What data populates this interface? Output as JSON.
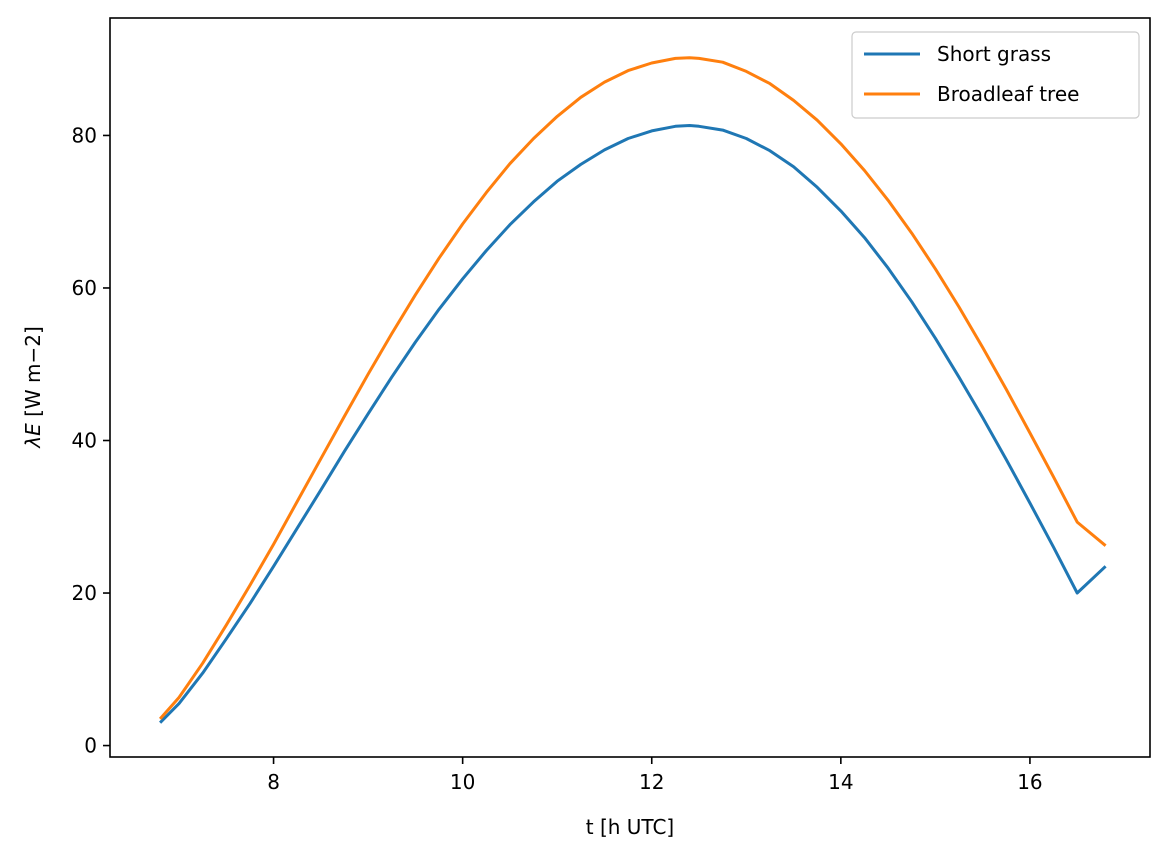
{
  "chart_data": {
    "type": "line",
    "title": "",
    "xlabel": "t [h UTC]",
    "ylabel_symbol": "λE",
    "ylabel_units": " [W m−2]",
    "xlim": [
      6.27,
      17.27
    ],
    "ylim": [
      -1.5,
      95.4
    ],
    "xticks": [
      8,
      10,
      12,
      14,
      16
    ],
    "yticks": [
      0,
      20,
      40,
      60,
      80
    ],
    "grid": false,
    "legend_position": "top-right",
    "series": [
      {
        "name": "Short grass",
        "color": "#1f77b4",
        "x": [
          6.8,
          7.0,
          7.25,
          7.5,
          7.75,
          8.0,
          8.25,
          8.5,
          8.75,
          9.0,
          9.25,
          9.5,
          9.75,
          10.0,
          10.25,
          10.5,
          10.75,
          11.0,
          11.25,
          11.5,
          11.75,
          12.0,
          12.25,
          12.4,
          12.5,
          12.75,
          13.0,
          13.25,
          13.5,
          13.75,
          14.0,
          14.25,
          14.5,
          14.75,
          15.0,
          15.25,
          15.5,
          15.75,
          16.0,
          16.25,
          16.5,
          16.8
        ],
        "y": [
          3.0,
          5.5,
          9.5,
          14.0,
          18.6,
          23.5,
          28.5,
          33.5,
          38.6,
          43.5,
          48.3,
          52.9,
          57.2,
          61.2,
          64.9,
          68.3,
          71.3,
          74.0,
          76.2,
          78.1,
          79.6,
          80.6,
          81.2,
          81.3,
          81.2,
          80.7,
          79.6,
          78.0,
          75.9,
          73.2,
          70.1,
          66.6,
          62.6,
          58.2,
          53.4,
          48.3,
          43.0,
          37.5,
          31.8,
          26.0,
          20.0,
          23.5
        ]
      },
      {
        "name": "Broadleaf tree",
        "color": "#ff7f0e",
        "x": [
          6.8,
          7.0,
          7.25,
          7.5,
          7.75,
          8.0,
          8.25,
          8.5,
          8.75,
          9.0,
          9.25,
          9.5,
          9.75,
          10.0,
          10.25,
          10.5,
          10.75,
          11.0,
          11.25,
          11.5,
          11.75,
          12.0,
          12.25,
          12.4,
          12.5,
          12.75,
          13.0,
          13.25,
          13.5,
          13.75,
          14.0,
          14.25,
          14.5,
          14.75,
          15.0,
          15.25,
          15.5,
          15.75,
          16.0,
          16.25,
          16.5,
          16.8
        ],
        "y": [
          3.5,
          6.3,
          10.8,
          15.8,
          21.0,
          26.4,
          32.0,
          37.6,
          43.2,
          48.7,
          54.0,
          59.1,
          63.9,
          68.4,
          72.5,
          76.3,
          79.6,
          82.5,
          85.0,
          87.0,
          88.5,
          89.5,
          90.1,
          90.2,
          90.1,
          89.6,
          88.4,
          86.8,
          84.6,
          82.0,
          78.9,
          75.4,
          71.5,
          67.2,
          62.5,
          57.5,
          52.2,
          46.7,
          41.0,
          35.2,
          29.3,
          26.2
        ]
      }
    ]
  }
}
